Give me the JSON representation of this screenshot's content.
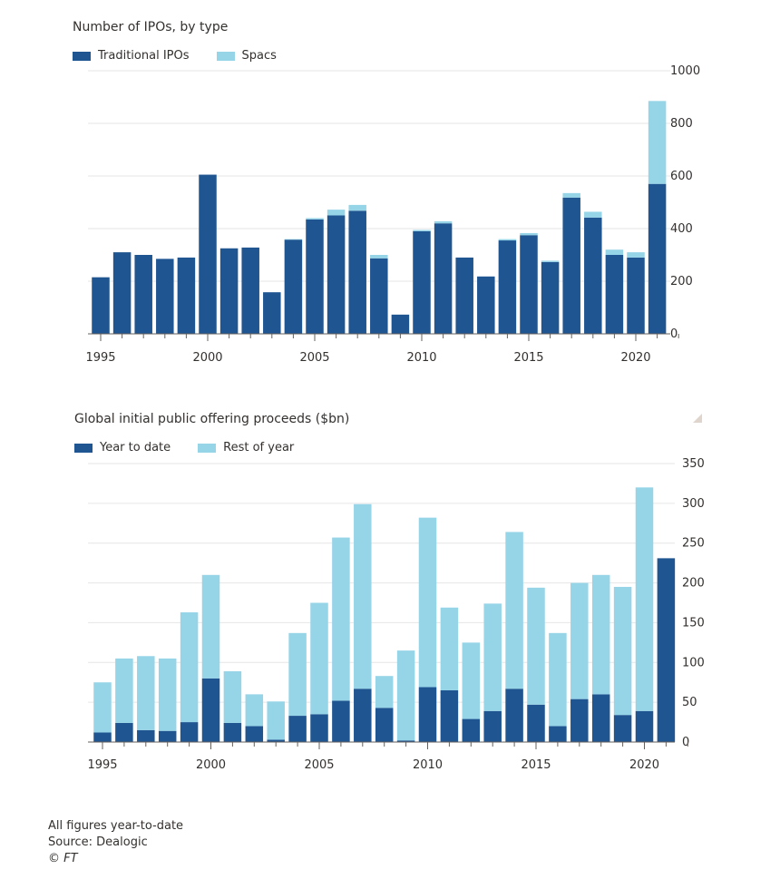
{
  "colors": {
    "dark": "#1f5591",
    "light": "#96d4e8",
    "grid": "#e6e6e6",
    "axis": "#66605c"
  },
  "charts": [
    {
      "title": "Number of IPOs, by type",
      "legend": [
        {
          "label": "Traditional IPOs",
          "color": "#1f5591"
        },
        {
          "label": "Spacs",
          "color": "#96d4e8"
        }
      ]
    },
    {
      "title": "Global initial public offering proceeds ($bn)",
      "legend": [
        {
          "label": "Year to date",
          "color": "#1f5591"
        },
        {
          "label": "Rest of year",
          "color": "#96d4e8"
        }
      ]
    }
  ],
  "footnotes": {
    "note": "All figures year-to-date",
    "source": "Source: Dealogic",
    "copyright": "© FT"
  },
  "chart_data": [
    {
      "type": "bar",
      "stacked": true,
      "title": "Number of IPOs, by type",
      "x": [
        1995,
        1996,
        1997,
        1998,
        1999,
        2000,
        2001,
        2002,
        2003,
        2004,
        2005,
        2006,
        2007,
        2008,
        2009,
        2010,
        2011,
        2012,
        2013,
        2014,
        2015,
        2016,
        2017,
        2018,
        2019,
        2020,
        2021
      ],
      "x_tick_labels": [
        "1995",
        "2000",
        "2005",
        "2010",
        "2015",
        "2020"
      ],
      "ylim": [
        0,
        1000
      ],
      "y_ticks": [
        0,
        200,
        400,
        600,
        800,
        1000
      ],
      "y_axis_side": "right",
      "grid": true,
      "legend_position": "top-left",
      "series": [
        {
          "name": "Traditional IPOs",
          "color": "#1f5591",
          "values": [
            215,
            310,
            300,
            285,
            290,
            605,
            325,
            328,
            158,
            358,
            435,
            450,
            468,
            287,
            73,
            390,
            420,
            290,
            218,
            355,
            375,
            273,
            518,
            442,
            300,
            290,
            570
          ]
        },
        {
          "name": "Spacs",
          "color": "#96d4e8",
          "values": [
            0,
            0,
            0,
            0,
            0,
            0,
            0,
            0,
            0,
            2,
            5,
            22,
            22,
            13,
            0,
            5,
            8,
            0,
            0,
            5,
            8,
            5,
            17,
            22,
            20,
            20,
            315
          ]
        }
      ]
    },
    {
      "type": "bar",
      "stacked": true,
      "title": "Global initial public offering proceeds ($bn)",
      "x": [
        1995,
        1996,
        1997,
        1998,
        1999,
        2000,
        2001,
        2002,
        2003,
        2004,
        2005,
        2006,
        2007,
        2008,
        2009,
        2010,
        2011,
        2012,
        2013,
        2014,
        2015,
        2016,
        2017,
        2018,
        2019,
        2020,
        2021
      ],
      "x_tick_labels": [
        "1995",
        "2000",
        "2005",
        "2010",
        "2015",
        "2020"
      ],
      "ylim": [
        0,
        350
      ],
      "y_ticks": [
        0,
        50,
        100,
        150,
        200,
        250,
        300,
        350
      ],
      "y_axis_side": "right",
      "grid": true,
      "legend_position": "top-left",
      "series": [
        {
          "name": "Year to date",
          "color": "#1f5591",
          "values": [
            12,
            24,
            15,
            14,
            25,
            80,
            24,
            20,
            3,
            33,
            35,
            52,
            67,
            43,
            2,
            69,
            65,
            29,
            39,
            67,
            47,
            20,
            54,
            60,
            34,
            39,
            231
          ]
        },
        {
          "name": "Rest of year",
          "color": "#96d4e8",
          "values": [
            63,
            81,
            93,
            91,
            138,
            130,
            65,
            40,
            48,
            104,
            140,
            205,
            232,
            40,
            113,
            213,
            104,
            96,
            135,
            197,
            147,
            117,
            146,
            150,
            161,
            281,
            0
          ]
        }
      ]
    }
  ]
}
